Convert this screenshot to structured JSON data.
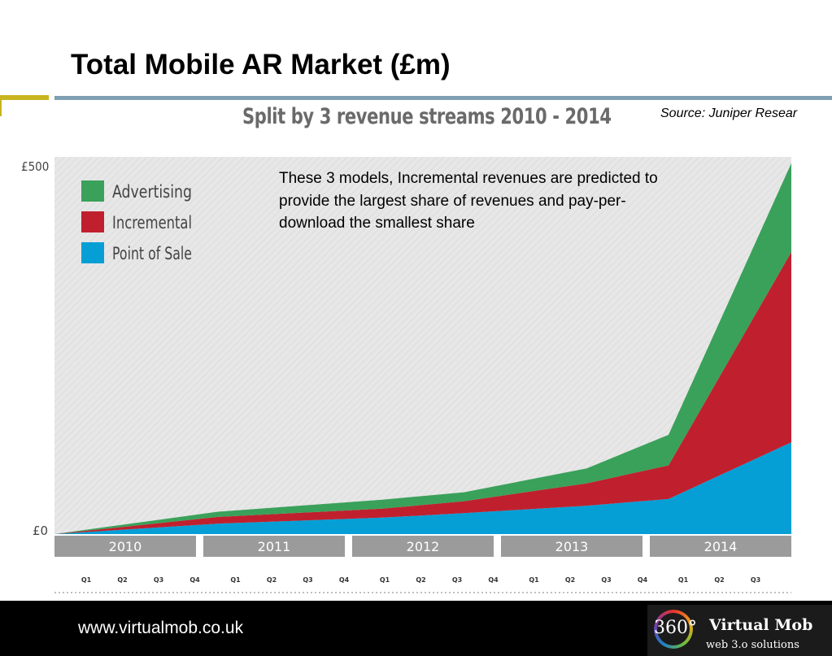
{
  "slide": {
    "title": "Total Mobile AR Market (£m)",
    "source": "Source: Juniper Resear",
    "annotation": "These 3 models, Incremental revenues are predicted to provide the largest share of revenues and pay-per-download the smallest share",
    "footer_url": "www.virtualmob.co.uk",
    "logo": {
      "number": "360°",
      "name": "Virtual Mob",
      "tagline": "web 3.o solutions"
    }
  },
  "colors": {
    "advertising": "#3aa15a",
    "incremental": "#c0202e",
    "point_of_sale": "#059fd6",
    "plot_bg": "#e4e4e4",
    "year_band": "#9b9b9b"
  },
  "chart_data": {
    "type": "area",
    "stacked": true,
    "title": "Split by 3 revenue streams 2010 - 2014",
    "ylabel": "",
    "xlabel": "",
    "ylim": [
      0,
      500
    ],
    "y_tick_labels": [
      "£0",
      "£500"
    ],
    "years": [
      "2010",
      "2011",
      "2012",
      "2013",
      "2014"
    ],
    "quarter_labels": [
      "Q1",
      "Q2",
      "Q3",
      "Q4",
      "Q1",
      "Q2",
      "Q3",
      "Q4",
      "Q1",
      "Q2",
      "Q3",
      "Q4",
      "Q1",
      "Q2",
      "Q3",
      "Q4",
      "Q1",
      "Q2",
      "Q3"
    ],
    "x": [
      "2010 Q1",
      "2011 Q1",
      "2012 Q1",
      "2012 Q3",
      "2013 Q2",
      "2013 Q4",
      "2014 Q3"
    ],
    "legend": {
      "position": "top-left",
      "entries": [
        "Advertising",
        "Incremental",
        "Point of Sale"
      ]
    },
    "series": [
      {
        "name": "Point of Sale",
        "values": [
          0,
          14,
          22,
          28,
          38,
          47,
          123
        ]
      },
      {
        "name": "Incremental",
        "values": [
          0,
          9,
          12,
          16,
          30,
          45,
          255
        ]
      },
      {
        "name": "Advertising",
        "values": [
          0,
          7,
          12,
          12,
          20,
          41,
          119
        ]
      }
    ]
  }
}
